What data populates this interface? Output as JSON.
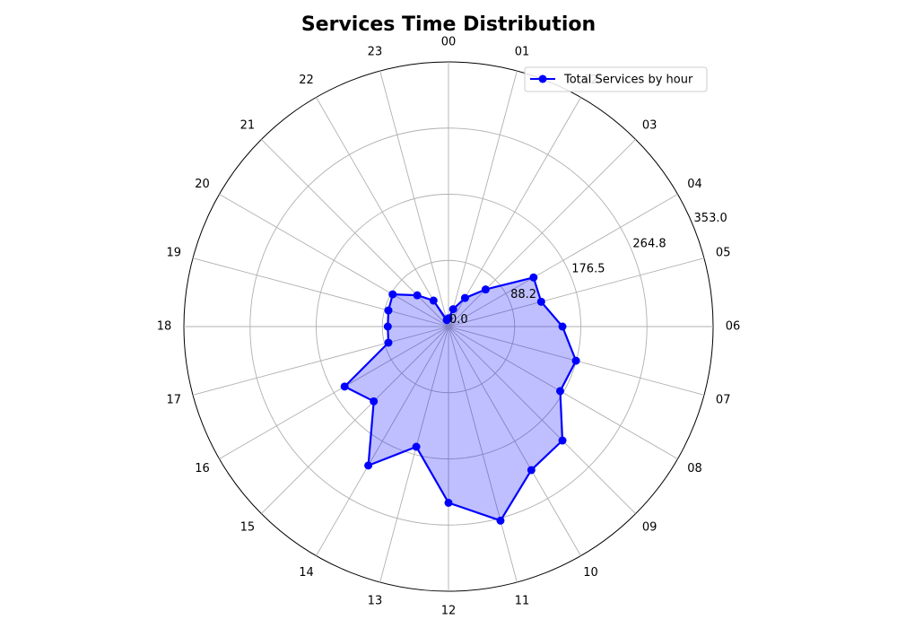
{
  "chart_data": {
    "type": "radar",
    "title": "Services Time Distribution",
    "categories": [
      "00",
      "01",
      "02",
      "03",
      "04",
      "05",
      "06",
      "07",
      "08",
      "09",
      "10",
      "11",
      "12",
      "13",
      "14",
      "15",
      "16",
      "17",
      "18",
      "19",
      "20",
      "21",
      "22",
      "23"
    ],
    "series": [
      {
        "name": "Total Services by hour",
        "color": "#0000ff",
        "fill": "#0000ff",
        "fill_opacity": 0.25,
        "values": [
          11,
          24,
          44,
          70,
          131,
          128,
          152,
          176,
          172,
          215,
          221,
          268,
          235,
          166,
          214,
          141,
          160,
          83,
          81,
          83,
          86,
          59,
          40,
          9
        ]
      }
    ],
    "radial_ticks": [
      "0.0",
      "88.2",
      "176.5",
      "264.8",
      "353.0"
    ],
    "rlim": [
      0,
      353
    ],
    "grid": true,
    "legend_position": "top-right"
  }
}
